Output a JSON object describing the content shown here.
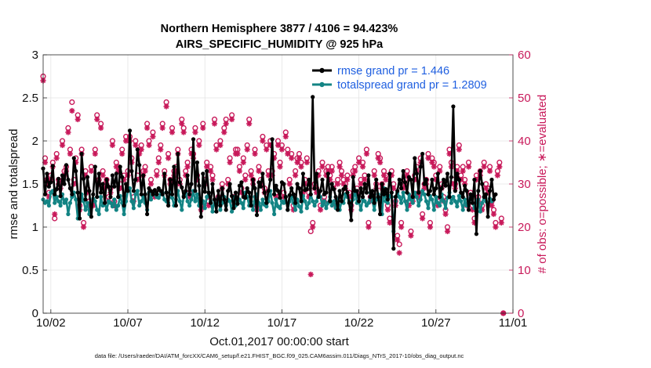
{
  "chart_data": {
    "type": "line",
    "title": "Northern Hemisphere 3877 / 4106 = 94.423%",
    "subtitle": "AIRS_SPECIFIC_HUMIDITY @ 925 hPa",
    "xlabel": "Oct.01,2017 00:00:00 start",
    "ylabel": "rmse and totalspread",
    "y2label": "# of obs: o=possible; ∗=evaluated",
    "x_range_days": [
      0.5,
      31.0
    ],
    "ylim": [
      0,
      3
    ],
    "y2lim": [
      0,
      60
    ],
    "x_ticks": [
      {
        "day": 1.0,
        "label": "10/02"
      },
      {
        "day": 6.0,
        "label": "10/07"
      },
      {
        "day": 11.0,
        "label": "10/12"
      },
      {
        "day": 16.0,
        "label": "10/17"
      },
      {
        "day": 21.0,
        "label": "10/22"
      },
      {
        "day": 26.0,
        "label": "10/27"
      },
      {
        "day": 31.0,
        "label": "11/01"
      }
    ],
    "y_ticks": [
      "0",
      "0.5",
      "1",
      "1.5",
      "2",
      "2.5",
      "3"
    ],
    "y2_ticks": [
      "0",
      "10",
      "20",
      "30",
      "40",
      "50",
      "60"
    ],
    "legend_position": "top-right",
    "series": [
      {
        "name": "rmse grand pr = 1.446",
        "color": "#000000",
        "marker": "asterisk",
        "x_start_day": 0.5,
        "x_step_days": 0.125,
        "values": [
          1.68,
          1.38,
          1.62,
          1.47,
          1.52,
          1.71,
          1.38,
          1.44,
          1.56,
          1.36,
          1.6,
          1.5,
          1.72,
          1.55,
          1.45,
          1.38,
          1.8,
          1.65,
          1.4,
          1.1,
          1.85,
          1.56,
          1.32,
          1.58,
          1.42,
          1.12,
          1.38,
          1.7,
          1.35,
          1.62,
          1.4,
          1.5,
          1.28,
          1.55,
          1.47,
          1.35,
          1.6,
          1.47,
          1.62,
          1.35,
          1.7,
          1.58,
          1.25,
          1.5,
          1.42,
          2.12,
          1.65,
          1.42,
          1.55,
          1.9,
          1.72,
          1.38,
          1.6,
          1.38,
          1.15,
          1.45,
          1.42,
          1.38,
          1.43,
          1.38,
          1.45,
          1.42,
          1.38,
          1.62,
          1.4,
          1.25,
          1.55,
          1.38,
          1.7,
          1.25,
          1.85,
          1.52,
          1.46,
          1.35,
          1.42,
          1.6,
          1.38,
          1.5,
          2.02,
          1.42,
          1.75,
          1.48,
          1.12,
          1.62,
          1.41,
          1.65,
          1.4,
          1.28,
          1.5,
          1.32,
          1.18,
          1.42,
          1.25,
          1.45,
          1.32,
          1.2,
          1.42,
          1.5,
          1.36,
          1.22,
          1.4,
          1.27,
          1.48,
          1.52,
          1.35,
          1.34,
          1.45,
          1.4,
          1.25,
          1.55,
          1.45,
          1.14,
          1.52,
          1.47,
          1.62,
          1.4,
          1.28,
          1.42,
          1.55,
          2.02,
          1.38,
          1.48,
          1.42,
          1.34,
          1.52,
          1.5,
          1.35,
          1.2,
          1.37,
          1.45,
          1.38,
          1.28,
          1.5,
          1.45,
          1.3,
          1.62,
          1.43,
          1.44,
          1.55,
          1.38,
          2.51,
          1.45,
          1.62,
          1.35,
          1.42,
          1.55,
          1.38,
          1.4,
          1.62,
          1.3,
          1.5,
          1.44,
          1.35,
          1.2,
          1.42,
          1.3,
          1.44,
          1.47,
          1.4,
          1.28,
          1.08,
          1.58,
          1.42,
          1.42,
          1.3,
          1.45,
          1.35,
          1.5,
          1.4,
          1.6,
          1.35,
          1.42,
          1.28,
          1.55,
          1.35,
          1.15,
          1.5,
          1.38,
          1.44,
          1.32,
          1.62,
          1.4,
          0.75,
          1.35,
          1.42,
          1.55,
          1.45,
          1.65,
          1.52,
          1.4,
          1.58,
          1.55,
          1.35,
          1.8,
          1.62,
          1.4,
          1.7,
          1.85,
          1.5,
          1.55,
          1.38,
          1.42,
          1.55,
          1.38,
          1.45,
          1.62,
          1.35,
          1.45,
          1.55,
          1.48,
          1.62,
          1.35,
          1.58,
          2.4,
          1.42,
          1.62,
          1.55,
          1.4,
          1.35,
          1.48,
          1.42,
          1.2,
          1.38,
          1.28,
          1.55,
          0.92,
          1.42,
          1.65,
          1.5,
          1.35,
          1.38,
          1.12,
          1.42,
          1.55,
          1.32,
          1.38
        ]
      },
      {
        "name": "totalspread grand pr = 1.2809",
        "color": "#138484",
        "marker": "circle",
        "x_start_day": 0.5,
        "x_step_days": 0.125,
        "values": [
          1.32,
          1.28,
          1.3,
          1.25,
          1.4,
          1.42,
          1.28,
          1.35,
          1.3,
          1.25,
          1.38,
          1.28,
          1.32,
          1.15,
          1.28,
          1.35,
          1.4,
          1.32,
          1.1,
          1.22,
          1.38,
          1.3,
          1.2,
          1.28,
          1.15,
          1.25,
          1.33,
          1.3,
          1.2,
          1.15,
          1.35,
          1.25,
          1.28,
          1.2,
          1.3,
          1.28,
          1.24,
          1.32,
          1.2,
          1.25,
          1.36,
          1.28,
          1.15,
          1.3,
          1.42,
          1.45,
          1.3,
          1.22,
          1.38,
          1.42,
          1.25,
          1.3,
          1.35,
          1.28,
          1.2,
          1.4,
          1.32,
          1.4,
          1.38,
          1.35,
          1.34,
          1.38,
          1.4,
          1.32,
          1.3,
          1.28,
          1.42,
          1.34,
          1.25,
          1.32,
          1.42,
          1.3,
          1.2,
          1.36,
          1.4,
          1.3,
          1.25,
          1.32,
          1.42,
          1.3,
          1.38,
          1.25,
          1.32,
          1.3,
          1.22,
          1.35,
          1.4,
          1.3,
          1.18,
          1.32,
          1.25,
          1.34,
          1.2,
          1.28,
          1.35,
          1.25,
          1.32,
          1.3,
          1.18,
          1.35,
          1.25,
          1.3,
          1.32,
          1.28,
          1.22,
          1.4,
          1.35,
          1.25,
          1.3,
          1.2,
          1.35,
          1.38,
          1.28,
          1.2,
          1.32,
          1.26,
          1.24,
          1.3,
          1.42,
          1.28,
          1.15,
          1.32,
          1.24,
          1.22,
          1.3,
          1.28,
          1.35,
          1.2,
          1.3,
          1.35,
          1.28,
          1.2,
          1.32,
          1.24,
          1.18,
          1.36,
          1.3,
          1.22,
          1.28,
          1.38,
          1.3,
          1.25,
          1.3,
          1.42,
          1.35,
          1.25,
          1.3,
          1.22,
          1.28,
          1.35,
          1.25,
          1.3,
          1.22,
          1.32,
          1.2,
          1.3,
          1.28,
          1.38,
          1.35,
          1.3,
          1.25,
          1.32,
          1.42,
          1.28,
          1.3,
          1.2,
          1.32,
          1.3,
          1.25,
          1.28,
          1.4,
          1.3,
          1.2,
          1.32,
          1.38,
          1.28,
          1.15,
          1.45,
          1.3,
          1.28,
          1.36,
          1.35,
          0.95,
          1.3,
          1.4,
          1.35,
          1.28,
          1.4,
          1.3,
          1.2,
          1.38,
          1.32,
          1.28,
          1.4,
          1.35,
          1.25,
          1.32,
          1.42,
          1.38,
          1.3,
          1.22,
          1.36,
          1.32,
          1.2,
          1.35,
          1.28,
          1.25,
          1.38,
          1.3,
          1.22,
          1.34,
          1.4,
          1.28,
          1.35,
          1.3,
          1.24,
          1.36,
          1.3,
          1.2,
          1.32,
          1.25,
          1.3,
          1.35,
          1.28,
          1.22,
          1.3,
          1.32,
          1.18,
          1.28,
          1.35,
          1.3,
          1.25,
          1.33,
          1.3
        ]
      },
      {
        "name": "# of obs possible (o)",
        "axis": "right",
        "color": "#c8195a",
        "marker": "open-circle",
        "x_start_day": 0.5,
        "x_step_days": 0.125,
        "values": [
          55,
          36,
          31,
          28,
          32,
          35,
          22,
          37,
          31,
          30,
          40,
          33,
          34,
          43,
          38,
          49,
          31,
          36,
          46,
          25,
          38,
          21,
          33,
          29,
          26,
          34,
          26,
          38,
          46,
          31,
          44,
          33,
          30,
          31,
          27,
          29,
          40,
          26,
          35,
          34,
          30,
          38,
          32,
          41,
          33,
          41,
          36,
          27,
          40,
          32,
          38,
          39,
          33,
          34,
          44,
          40,
          31,
          42,
          28,
          33,
          36,
          39,
          44,
          33,
          49,
          37,
          31,
          43,
          33,
          34,
          38,
          31,
          45,
          43,
          33,
          35,
          28,
          38,
          37,
          43,
          32,
          40,
          25,
          44,
          31,
          35,
          26,
          34,
          32,
          45,
          39,
          27,
          40,
          30,
          43,
          45,
          31,
          36,
          46,
          27,
          38,
          38,
          34,
          29,
          36,
          32,
          39,
          45,
          33,
          31,
          38,
          25,
          34,
          31,
          41,
          29,
          39,
          33,
          40,
          33,
          37,
          28,
          40,
          35,
          39,
          28,
          42,
          38,
          31,
          37,
          25,
          33,
          36,
          37,
          35,
          29,
          31,
          36,
          28,
          19,
          21,
          30,
          29,
          33,
          25,
          35,
          27,
          33,
          34,
          32,
          34,
          30,
          26,
          31,
          35,
          33,
          31,
          30,
          32,
          28,
          25,
          33,
          34,
          29,
          36,
          31,
          35,
          32,
          38,
          21,
          27,
          28,
          33,
          30,
          37,
          36,
          30,
          33,
          32,
          25,
          22,
          33,
          30,
          26,
          18,
          16,
          21,
          30,
          31,
          33,
          26,
          19,
          27,
          32,
          34,
          28,
          36,
          23,
          30,
          31,
          37,
          21,
          36,
          35,
          32,
          26,
          34,
          30,
          27,
          24,
          20,
          38,
          35,
          31,
          30,
          34,
          39,
          32,
          34,
          31,
          26,
          35,
          28,
          25,
          22,
          32,
          27,
          33,
          25,
          35,
          30,
          29,
          34,
          26,
          24,
          21,
          33,
          35,
          22,
          0
        ]
      },
      {
        "name": "# of obs evaluated (*)",
        "axis": "right",
        "color": "#c8195a",
        "marker": "asterisk",
        "x_start_day": 0.5,
        "x_step_days": 0.125,
        "values": [
          54,
          35,
          30,
          27,
          31,
          34,
          23,
          36,
          30,
          29,
          39,
          32,
          33,
          42,
          37,
          47,
          30,
          35,
          45,
          24,
          37,
          20,
          32,
          28,
          25,
          33,
          25,
          37,
          45,
          30,
          43,
          32,
          29,
          30,
          26,
          28,
          39,
          25,
          34,
          33,
          29,
          37,
          31,
          40,
          32,
          40,
          35,
          26,
          39,
          31,
          37,
          38,
          32,
          33,
          43,
          39,
          30,
          41,
          27,
          32,
          35,
          38,
          43,
          32,
          48,
          36,
          30,
          42,
          32,
          33,
          37,
          30,
          44,
          42,
          32,
          34,
          27,
          37,
          36,
          42,
          31,
          39,
          24,
          43,
          30,
          34,
          25,
          33,
          31,
          44,
          38,
          26,
          39,
          29,
          42,
          44,
          30,
          35,
          45,
          26,
          37,
          37,
          33,
          28,
          35,
          31,
          38,
          44,
          32,
          30,
          37,
          24,
          33,
          30,
          40,
          28,
          38,
          32,
          39,
          32,
          36,
          27,
          39,
          34,
          38,
          27,
          41,
          37,
          30,
          36,
          24,
          32,
          35,
          36,
          34,
          28,
          30,
          35,
          27,
          9,
          20,
          29,
          28,
          32,
          24,
          34,
          26,
          32,
          33,
          31,
          33,
          29,
          25,
          30,
          34,
          32,
          30,
          29,
          31,
          27,
          24,
          32,
          33,
          28,
          35,
          30,
          34,
          31,
          37,
          20,
          26,
          27,
          32,
          29,
          36,
          35,
          29,
          32,
          31,
          24,
          21,
          32,
          29,
          25,
          17,
          14,
          20,
          29,
          30,
          32,
          25,
          18,
          26,
          31,
          33,
          27,
          35,
          22,
          29,
          30,
          36,
          20,
          35,
          34,
          31,
          25,
          33,
          29,
          26,
          23,
          19,
          37,
          34,
          30,
          29,
          33,
          38,
          31,
          33,
          30,
          25,
          34,
          27,
          24,
          21,
          31,
          26,
          32,
          24,
          34,
          29,
          28,
          33,
          25,
          23,
          20,
          32,
          34,
          21,
          0
        ]
      }
    ]
  },
  "footer": {
    "data_file": "data file: /Users/raeder/DAI/ATM_forcXX/CAM6_setup/f.e21.FHIST_BGC.f09_025.CAM6assim.011/Diags_NTrS_2017-10/obs_diag_output.nc"
  }
}
